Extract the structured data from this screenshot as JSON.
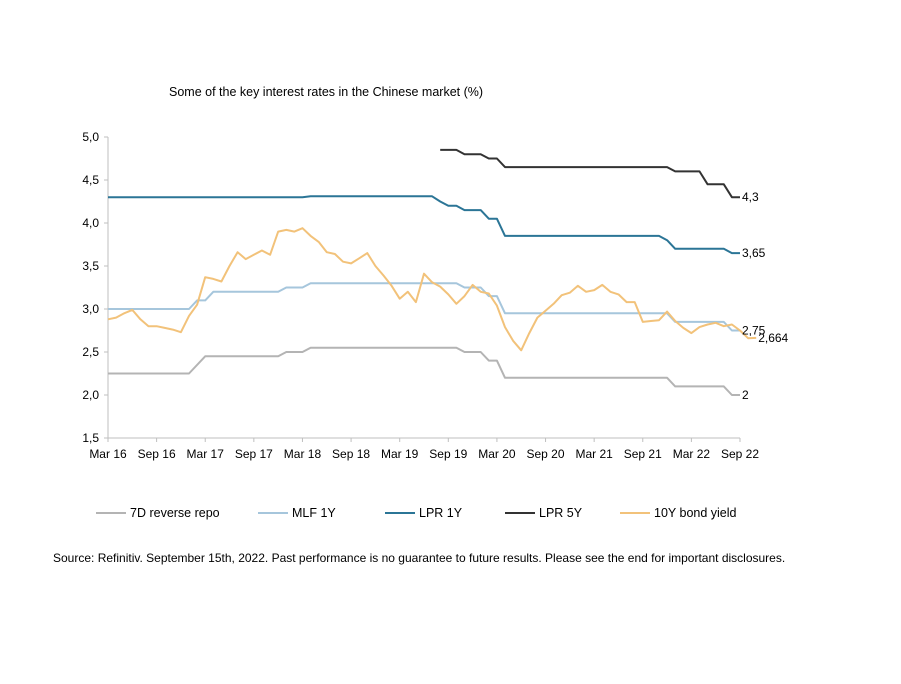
{
  "chart_data": {
    "type": "line",
    "title": "Some of the key interest rates in the Chinese market (%)",
    "xlabel": "",
    "ylabel": "",
    "ylim": [
      1.5,
      5.0
    ],
    "yticks": [
      "5,0",
      "4,5",
      "4,0",
      "3,5",
      "3,0",
      "2,5",
      "2,0",
      "1,5"
    ],
    "ytick_values": [
      5.0,
      4.5,
      4.0,
      3.5,
      3.0,
      2.5,
      2.0,
      1.5
    ],
    "xlim": [
      "2016-03",
      "2022-09"
    ],
    "xticks": [
      "Mar 16",
      "Sep 16",
      "Mar 17",
      "Sep 17",
      "Mar 18",
      "Sep 18",
      "Mar 19",
      "Sep 19",
      "Mar 20",
      "Sep 20",
      "Mar 21",
      "Sep 21",
      "Mar 22",
      "Sep 22"
    ],
    "xtick_dates": [
      "2016-03",
      "2016-09",
      "2017-03",
      "2017-09",
      "2018-03",
      "2018-09",
      "2019-03",
      "2019-09",
      "2020-03",
      "2020-09",
      "2021-03",
      "2021-09",
      "2022-03",
      "2022-09"
    ],
    "grid": false,
    "legend_position": "bottom",
    "series": [
      {
        "name": "7D reverse repo",
        "color": "#b4b4b4",
        "end_label": "2",
        "points": [
          [
            "2016-03",
            2.25
          ],
          [
            "2017-01",
            2.25
          ],
          [
            "2017-03",
            2.45
          ],
          [
            "2017-12",
            2.45
          ],
          [
            "2018-01",
            2.5
          ],
          [
            "2018-03",
            2.5
          ],
          [
            "2018-04",
            2.55
          ],
          [
            "2019-10",
            2.55
          ],
          [
            "2019-11",
            2.5
          ],
          [
            "2020-01",
            2.5
          ],
          [
            "2020-02",
            2.4
          ],
          [
            "2020-03",
            2.4
          ],
          [
            "2020-04",
            2.2
          ],
          [
            "2021-12",
            2.2
          ],
          [
            "2022-01",
            2.1
          ],
          [
            "2022-07",
            2.1
          ],
          [
            "2022-08",
            2.0
          ],
          [
            "2022-09",
            2.0
          ]
        ]
      },
      {
        "name": "MLF 1Y",
        "color": "#a6c6dc",
        "end_label": "2,75",
        "points": [
          [
            "2016-03",
            3.0
          ],
          [
            "2017-01",
            3.0
          ],
          [
            "2017-02",
            3.1
          ],
          [
            "2017-03",
            3.1
          ],
          [
            "2017-04",
            3.2
          ],
          [
            "2017-12",
            3.2
          ],
          [
            "2018-01",
            3.25
          ],
          [
            "2018-03",
            3.25
          ],
          [
            "2018-04",
            3.3
          ],
          [
            "2019-10",
            3.3
          ],
          [
            "2019-11",
            3.25
          ],
          [
            "2020-01",
            3.25
          ],
          [
            "2020-02",
            3.15
          ],
          [
            "2020-03",
            3.15
          ],
          [
            "2020-04",
            2.95
          ],
          [
            "2021-12",
            2.95
          ],
          [
            "2022-01",
            2.85
          ],
          [
            "2022-07",
            2.85
          ],
          [
            "2022-08",
            2.75
          ],
          [
            "2022-09",
            2.75
          ]
        ]
      },
      {
        "name": "LPR 1Y",
        "color": "#2b7596",
        "end_label": "3,65",
        "points": [
          [
            "2016-03",
            4.3
          ],
          [
            "2018-03",
            4.3
          ],
          [
            "2018-04",
            4.31
          ],
          [
            "2019-07",
            4.31
          ],
          [
            "2019-08",
            4.25
          ],
          [
            "2019-09",
            4.2
          ],
          [
            "2019-10",
            4.2
          ],
          [
            "2019-11",
            4.15
          ],
          [
            "2020-01",
            4.15
          ],
          [
            "2020-02",
            4.05
          ],
          [
            "2020-03",
            4.05
          ],
          [
            "2020-04",
            3.85
          ],
          [
            "2021-11",
            3.85
          ],
          [
            "2021-12",
            3.8
          ],
          [
            "2022-01",
            3.7
          ],
          [
            "2022-07",
            3.7
          ],
          [
            "2022-08",
            3.65
          ],
          [
            "2022-09",
            3.65
          ]
        ]
      },
      {
        "name": "LPR 5Y",
        "color": "#333333",
        "end_label": "4,3",
        "points": [
          [
            "2019-08",
            4.85
          ],
          [
            "2019-10",
            4.85
          ],
          [
            "2019-11",
            4.8
          ],
          [
            "2020-01",
            4.8
          ],
          [
            "2020-02",
            4.75
          ],
          [
            "2020-03",
            4.75
          ],
          [
            "2020-04",
            4.65
          ],
          [
            "2021-12",
            4.65
          ],
          [
            "2022-01",
            4.6
          ],
          [
            "2022-04",
            4.6
          ],
          [
            "2022-05",
            4.45
          ],
          [
            "2022-07",
            4.45
          ],
          [
            "2022-08",
            4.3
          ],
          [
            "2022-09",
            4.3
          ]
        ]
      },
      {
        "name": "10Y bond yield",
        "color": "#f2c27a",
        "end_label": "2,664",
        "points": [
          [
            "2016-03",
            2.88
          ],
          [
            "2016-04",
            2.9
          ],
          [
            "2016-05",
            2.95
          ],
          [
            "2016-06",
            2.99
          ],
          [
            "2016-07",
            2.88
          ],
          [
            "2016-08",
            2.8
          ],
          [
            "2016-09",
            2.8
          ],
          [
            "2016-10",
            2.78
          ],
          [
            "2016-11",
            2.76
          ],
          [
            "2016-12",
            2.73
          ],
          [
            "2017-01",
            2.92
          ],
          [
            "2017-02",
            3.05
          ],
          [
            "2017-03",
            3.37
          ],
          [
            "2017-04",
            3.35
          ],
          [
            "2017-05",
            3.32
          ],
          [
            "2017-06",
            3.5
          ],
          [
            "2017-07",
            3.66
          ],
          [
            "2017-08",
            3.58
          ],
          [
            "2017-09",
            3.63
          ],
          [
            "2017-10",
            3.68
          ],
          [
            "2017-11",
            3.63
          ],
          [
            "2017-12",
            3.9
          ],
          [
            "2018-01",
            3.92
          ],
          [
            "2018-02",
            3.9
          ],
          [
            "2018-03",
            3.94
          ],
          [
            "2018-04",
            3.85
          ],
          [
            "2018-05",
            3.78
          ],
          [
            "2018-06",
            3.66
          ],
          [
            "2018-07",
            3.64
          ],
          [
            "2018-08",
            3.55
          ],
          [
            "2018-09",
            3.53
          ],
          [
            "2018-10",
            3.59
          ],
          [
            "2018-11",
            3.65
          ],
          [
            "2018-12",
            3.5
          ],
          [
            "2019-01",
            3.39
          ],
          [
            "2019-02",
            3.27
          ],
          [
            "2019-03",
            3.12
          ],
          [
            "2019-04",
            3.2
          ],
          [
            "2019-05",
            3.08
          ],
          [
            "2019-06",
            3.41
          ],
          [
            "2019-07",
            3.31
          ],
          [
            "2019-08",
            3.26
          ],
          [
            "2019-09",
            3.17
          ],
          [
            "2019-10",
            3.06
          ],
          [
            "2019-11",
            3.15
          ],
          [
            "2019-12",
            3.28
          ],
          [
            "2020-01",
            3.2
          ],
          [
            "2020-02",
            3.18
          ],
          [
            "2020-03",
            3.04
          ],
          [
            "2020-04",
            2.79
          ],
          [
            "2020-05",
            2.63
          ],
          [
            "2020-06",
            2.52
          ],
          [
            "2020-07",
            2.72
          ],
          [
            "2020-08",
            2.9
          ],
          [
            "2020-09",
            2.98
          ],
          [
            "2020-10",
            3.06
          ],
          [
            "2020-11",
            3.16
          ],
          [
            "2020-12",
            3.19
          ],
          [
            "2021-01",
            3.27
          ],
          [
            "2021-02",
            3.2
          ],
          [
            "2021-03",
            3.22
          ],
          [
            "2021-04",
            3.28
          ],
          [
            "2021-05",
            3.2
          ],
          [
            "2021-06",
            3.17
          ],
          [
            "2021-07",
            3.08
          ],
          [
            "2021-08",
            3.08
          ],
          [
            "2021-09",
            2.85
          ],
          [
            "2021-10",
            2.86
          ],
          [
            "2021-11",
            2.87
          ],
          [
            "2021-12",
            2.97
          ],
          [
            "2022-01",
            2.86
          ],
          [
            "2022-02",
            2.78
          ],
          [
            "2022-03",
            2.72
          ],
          [
            "2022-04",
            2.79
          ],
          [
            "2022-05",
            2.82
          ],
          [
            "2022-06",
            2.84
          ],
          [
            "2022-07",
            2.8
          ],
          [
            "2022-08",
            2.82
          ],
          [
            "2022-09",
            2.75
          ],
          [
            "2022-10",
            2.66
          ],
          [
            "2022-11",
            2.664
          ]
        ]
      }
    ]
  },
  "source": "Source: Refinitiv. September 15th, 2022. Past performance is no guarantee to future results. Please see the end for important disclosures."
}
